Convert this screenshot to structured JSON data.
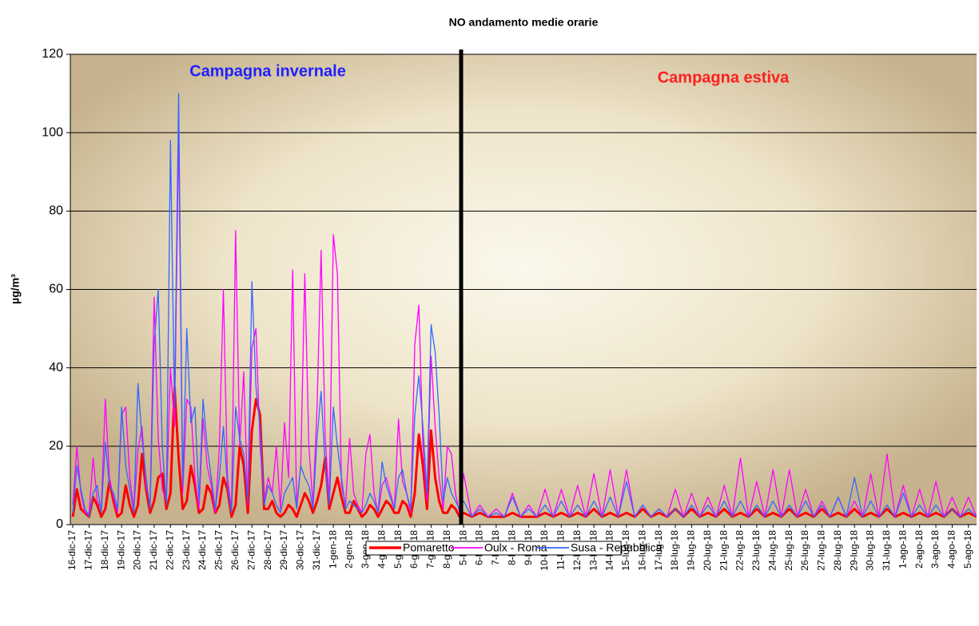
{
  "chart_data": {
    "type": "line",
    "title": "NO andamento medie orarie",
    "y_label": "µg/m³",
    "annotations": [
      {
        "text": "Campagna invernale",
        "color": "#1f1fff"
      },
      {
        "text": "Campagna estiva",
        "color": "#ff1f1f"
      }
    ],
    "xlim": [
      -0.15,
      55.5
    ],
    "xticks": [
      {
        "value": 0,
        "label": "16-dic-17"
      },
      {
        "value": 1,
        "label": "17-dic-17"
      },
      {
        "value": 2,
        "label": "18-dic-17"
      },
      {
        "value": 3,
        "label": "19-dic-17"
      },
      {
        "value": 4,
        "label": "20-dic-17"
      },
      {
        "value": 5,
        "label": "21-dic-17"
      },
      {
        "value": 6,
        "label": "22-dic-17"
      },
      {
        "value": 7,
        "label": "23-dic-17"
      },
      {
        "value": 8,
        "label": "24-dic-17"
      },
      {
        "value": 9,
        "label": "25-dic-17"
      },
      {
        "value": 10,
        "label": "26-dic-17"
      },
      {
        "value": 11,
        "label": "27-dic-17"
      },
      {
        "value": 12,
        "label": "28-dic-17"
      },
      {
        "value": 13,
        "label": "29-dic-17"
      },
      {
        "value": 14,
        "label": "30-dic-17"
      },
      {
        "value": 15,
        "label": "31-dic-17"
      },
      {
        "value": 16,
        "label": "1-gen-18"
      },
      {
        "value": 17,
        "label": "2-gen-18"
      },
      {
        "value": 18,
        "label": "3-gen-18"
      },
      {
        "value": 19,
        "label": "4-gen-18"
      },
      {
        "value": 20,
        "label": "5-gen-18"
      },
      {
        "value": 21,
        "label": "6-gen-18"
      },
      {
        "value": 22,
        "label": "7-gen-18"
      },
      {
        "value": 23,
        "label": "8-gen-18"
      },
      {
        "value": 24,
        "label": "5-lug-18"
      },
      {
        "value": 25,
        "label": "6-lug-18"
      },
      {
        "value": 26,
        "label": "7-lug-18"
      },
      {
        "value": 27,
        "label": "8-lug-18"
      },
      {
        "value": 28,
        "label": "9-lug-18"
      },
      {
        "value": 29,
        "label": "10-lug-18"
      },
      {
        "value": 30,
        "label": "11-lug-18"
      },
      {
        "value": 31,
        "label": "12-lug-18"
      },
      {
        "value": 32,
        "label": "13-lug-18"
      },
      {
        "value": 33,
        "label": "14-lug-18"
      },
      {
        "value": 34,
        "label": "15-lug-18"
      },
      {
        "value": 35,
        "label": "16-lug-18"
      },
      {
        "value": 36,
        "label": "17-lug-18"
      },
      {
        "value": 37,
        "label": "18-lug-18"
      },
      {
        "value": 38,
        "label": "19-lug-18"
      },
      {
        "value": 39,
        "label": "20-lug-18"
      },
      {
        "value": 40,
        "label": "21-lug-18"
      },
      {
        "value": 41,
        "label": "22-lug-18"
      },
      {
        "value": 42,
        "label": "23-lug-18"
      },
      {
        "value": 43,
        "label": "24-lug-18"
      },
      {
        "value": 44,
        "label": "25-lug-18"
      },
      {
        "value": 45,
        "label": "26-lug-18"
      },
      {
        "value": 46,
        "label": "27-lug-18"
      },
      {
        "value": 47,
        "label": "28-lug-18"
      },
      {
        "value": 48,
        "label": "29-lug-18"
      },
      {
        "value": 49,
        "label": "30-lug-18"
      },
      {
        "value": 50,
        "label": "31-lug-18"
      },
      {
        "value": 51,
        "label": "1-ago-18"
      },
      {
        "value": 52,
        "label": "2-ago-18"
      },
      {
        "value": 53,
        "label": "3-ago-18"
      },
      {
        "value": 54,
        "label": "4-ago-18"
      },
      {
        "value": 55,
        "label": "5-ago-18"
      }
    ],
    "ylim": [
      0,
      120
    ],
    "yticks": [
      0,
      20,
      40,
      60,
      80,
      100,
      120
    ],
    "grid": true,
    "x": [
      0,
      0.25,
      0.5,
      0.75,
      1,
      1.25,
      1.5,
      1.75,
      2,
      2.25,
      2.5,
      2.75,
      3,
      3.25,
      3.5,
      3.75,
      4,
      4.25,
      4.5,
      4.75,
      5,
      5.25,
      5.5,
      5.75,
      6,
      6.25,
      6.5,
      6.75,
      7,
      7.25,
      7.5,
      7.75,
      8,
      8.25,
      8.5,
      8.75,
      9,
      9.25,
      9.5,
      9.75,
      10,
      10.25,
      10.5,
      10.75,
      11,
      11.25,
      11.5,
      11.75,
      12,
      12.25,
      12.5,
      12.75,
      13,
      13.25,
      13.5,
      13.75,
      14,
      14.25,
      14.5,
      14.75,
      15,
      15.25,
      15.5,
      15.75,
      16,
      16.25,
      16.5,
      16.75,
      17,
      17.25,
      17.5,
      17.75,
      18,
      18.25,
      18.5,
      18.75,
      19,
      19.25,
      19.5,
      19.75,
      20,
      20.25,
      20.5,
      20.75,
      21,
      21.25,
      21.5,
      21.75,
      22,
      22.25,
      22.5,
      22.75,
      23,
      23.25,
      23.5,
      23.75,
      24,
      24.5,
      25,
      25.5,
      26,
      26.5,
      27,
      27.5,
      28,
      28.5,
      29,
      29.5,
      30,
      30.5,
      31,
      31.5,
      32,
      32.5,
      33,
      33.5,
      34,
      34.5,
      35,
      35.5,
      36,
      36.5,
      37,
      37.5,
      38,
      38.5,
      39,
      39.5,
      40,
      40.5,
      41,
      41.5,
      42,
      42.5,
      43,
      43.5,
      44,
      44.5,
      45,
      45.5,
      46,
      46.5,
      47,
      47.5,
      48,
      48.5,
      49,
      49.5,
      50,
      50.5,
      51,
      51.5,
      52,
      52.5,
      53,
      53.5,
      54,
      54.5,
      55,
      55.5
    ],
    "series": [
      {
        "name": "Pomaretto",
        "color": "#ff0000",
        "width": 3,
        "values": [
          2,
          9,
          4,
          3,
          2,
          7,
          5,
          2,
          4,
          11,
          6,
          2,
          3,
          10,
          5,
          2,
          5,
          18,
          9,
          3,
          6,
          12,
          13,
          4,
          8,
          35,
          17,
          4,
          6,
          15,
          10,
          3,
          4,
          10,
          8,
          3,
          5,
          12,
          9,
          2,
          5,
          20,
          15,
          3,
          24,
          32,
          28,
          4,
          4,
          6,
          3,
          2,
          3,
          5,
          4,
          2,
          5,
          8,
          6,
          3,
          6,
          10,
          17,
          4,
          8,
          12,
          7,
          3,
          3,
          6,
          4,
          2,
          3,
          5,
          4,
          2,
          4,
          6,
          5,
          3,
          3,
          6,
          5,
          2,
          8,
          23,
          15,
          4,
          24,
          12,
          6,
          3,
          3,
          5,
          4,
          2,
          3,
          2,
          3,
          2,
          2,
          2,
          3,
          2,
          2,
          2,
          3,
          2,
          3,
          2,
          3,
          2,
          4,
          2,
          3,
          2,
          3,
          2,
          4,
          2,
          3,
          2,
          4,
          2,
          4,
          2,
          3,
          2,
          4,
          2,
          3,
          2,
          4,
          2,
          3,
          2,
          4,
          2,
          3,
          2,
          4,
          2,
          3,
          2,
          4,
          2,
          3,
          2,
          4,
          2,
          3,
          2,
          3,
          2,
          3,
          2,
          4,
          2,
          3,
          2
        ]
      },
      {
        "name": "Oulx - Roma",
        "color": "#ff00ff",
        "width": 1.3,
        "values": [
          5,
          20,
          8,
          3,
          3,
          17,
          6,
          4,
          32,
          12,
          7,
          3,
          28,
          30,
          12,
          4,
          19,
          25,
          10,
          5,
          58,
          22,
          9,
          6,
          40,
          25,
          100,
          8,
          32,
          30,
          12,
          4,
          27,
          15,
          10,
          3,
          20,
          60,
          12,
          4,
          75,
          20,
          39,
          5,
          45,
          50,
          20,
          6,
          12,
          8,
          20,
          4,
          26,
          12,
          65,
          5,
          15,
          64,
          20,
          5,
          30,
          70,
          22,
          6,
          74,
          64,
          10,
          5,
          22,
          8,
          5,
          3,
          18,
          23,
          8,
          3,
          10,
          12,
          8,
          4,
          27,
          11,
          8,
          3,
          46,
          56,
          20,
          6,
          43,
          25,
          12,
          4,
          20,
          18,
          8,
          3,
          13,
          2,
          5,
          2,
          4,
          2,
          8,
          2,
          5,
          2,
          9,
          2,
          9,
          2,
          10,
          2,
          13,
          2,
          14,
          2,
          14,
          2,
          5,
          2,
          4,
          2,
          9,
          2,
          8,
          2,
          7,
          2,
          10,
          2,
          17,
          2,
          11,
          2,
          14,
          2,
          14,
          2,
          9,
          2,
          6,
          2,
          7,
          2,
          6,
          2,
          13,
          2,
          18,
          2,
          10,
          2,
          9,
          2,
          11,
          2,
          7,
          2,
          7,
          2
        ]
      },
      {
        "name": "Susa - Repubblica",
        "color": "#3366ff",
        "width": 1.3,
        "values": [
          3,
          15,
          9,
          4,
          2,
          8,
          10,
          3,
          21,
          10,
          8,
          4,
          30,
          15,
          9,
          3,
          36,
          22,
          12,
          4,
          46,
          60,
          20,
          5,
          98,
          30,
          110,
          10,
          50,
          26,
          30,
          6,
          32,
          20,
          12,
          4,
          12,
          25,
          10,
          3,
          30,
          22,
          18,
          6,
          62,
          35,
          25,
          5,
          10,
          8,
          5,
          3,
          8,
          10,
          12,
          4,
          15,
          12,
          10,
          4,
          22,
          34,
          15,
          5,
          30,
          20,
          12,
          4,
          6,
          5,
          4,
          3,
          5,
          8,
          6,
          3,
          16,
          10,
          7,
          4,
          12,
          14,
          8,
          4,
          28,
          38,
          25,
          8,
          51,
          44,
          28,
          6,
          12,
          8,
          6,
          4,
          6,
          2,
          4,
          2,
          3,
          2,
          7,
          2,
          4,
          2,
          5,
          2,
          6,
          2,
          5,
          2,
          6,
          2,
          7,
          2,
          11,
          2,
          5,
          2,
          4,
          2,
          4,
          2,
          5,
          2,
          5,
          2,
          6,
          2,
          6,
          2,
          5,
          2,
          6,
          2,
          5,
          2,
          6,
          2,
          5,
          2,
          7,
          2,
          12,
          2,
          6,
          2,
          5,
          2,
          8,
          2,
          5,
          2,
          5,
          2,
          4,
          2,
          4,
          2
        ]
      }
    ]
  }
}
